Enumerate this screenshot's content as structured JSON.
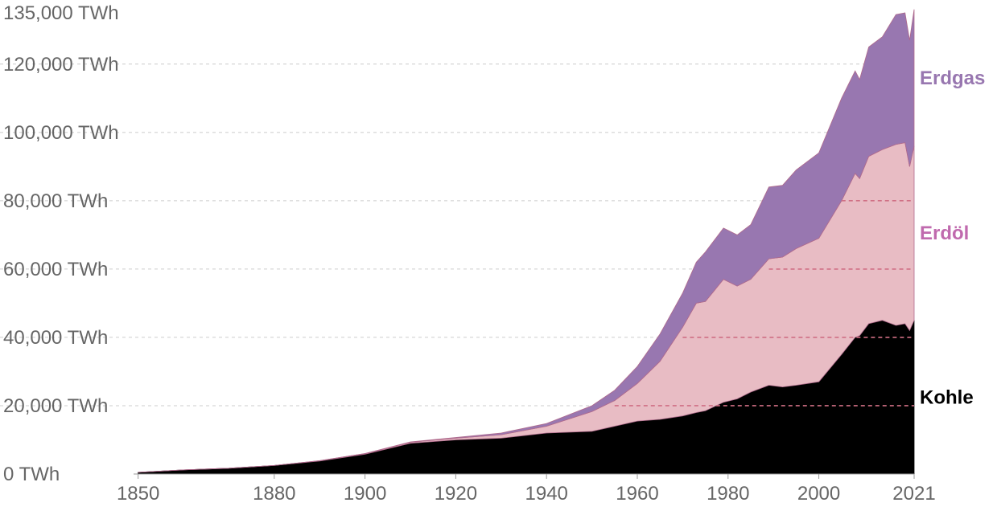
{
  "chart_data": {
    "type": "area",
    "stacked": true,
    "x": [
      1850,
      1860,
      1870,
      1880,
      1890,
      1900,
      1910,
      1920,
      1930,
      1940,
      1950,
      1955,
      1960,
      1965,
      1970,
      1973,
      1975,
      1979,
      1982,
      1985,
      1989,
      1992,
      1995,
      2000,
      2005,
      2008,
      2009,
      2011,
      2014,
      2017,
      2019,
      2020,
      2021
    ],
    "series": [
      {
        "name": "Kohle",
        "color": "#000000",
        "values": [
          500,
          1200,
          1700,
          2500,
          3800,
          5800,
          9000,
          10000,
          10500,
          12000,
          12500,
          14000,
          15500,
          16000,
          17000,
          18000,
          18500,
          21000,
          22000,
          24000,
          26000,
          25500,
          26000,
          27000,
          35000,
          40000,
          40500,
          44000,
          45000,
          43500,
          44000,
          42000,
          45000
        ]
      },
      {
        "name": "Erdöl",
        "color": "#e8bcc4",
        "values": [
          0,
          0,
          0,
          0,
          100,
          200,
          300,
          500,
          1000,
          2000,
          5800,
          7500,
          11000,
          17000,
          26000,
          32000,
          32000,
          36000,
          33000,
          33000,
          37000,
          38000,
          40000,
          42000,
          45000,
          48000,
          46000,
          49000,
          50000,
          53000,
          53000,
          48000,
          51000
        ]
      },
      {
        "name": "Erdgas",
        "color": "#9877b0",
        "values": [
          0,
          0,
          0,
          0,
          0,
          0,
          100,
          200,
          500,
          800,
          1700,
          3000,
          5000,
          8000,
          10000,
          12000,
          14500,
          15000,
          15000,
          16000,
          21000,
          21000,
          23000,
          25000,
          30000,
          30000,
          29000,
          32000,
          33000,
          38000,
          38000,
          37000,
          40000
        ]
      }
    ],
    "yticks": [
      "0 TWh",
      "20,000 TWh",
      "40,000 TWh",
      "60,000 TWh",
      "80,000 TWh",
      "100,000 TWh",
      "120,000 TWh",
      "135,000 TWh"
    ],
    "ytick_values": [
      0,
      20000,
      40000,
      60000,
      80000,
      100000,
      120000,
      135000
    ],
    "xticks": [
      "1850",
      "1880",
      "1900",
      "1920",
      "1940",
      "1960",
      "1980",
      "2000",
      "2021"
    ],
    "xtick_values": [
      1850,
      1880,
      1900,
      1920,
      1940,
      1960,
      1980,
      2000,
      2021
    ],
    "xlim": [
      1849,
      2021
    ],
    "ylim": [
      0,
      135000
    ],
    "grid": true,
    "gridline_color": "#cccccc",
    "overlay_grid_color": "#cf6f84"
  }
}
